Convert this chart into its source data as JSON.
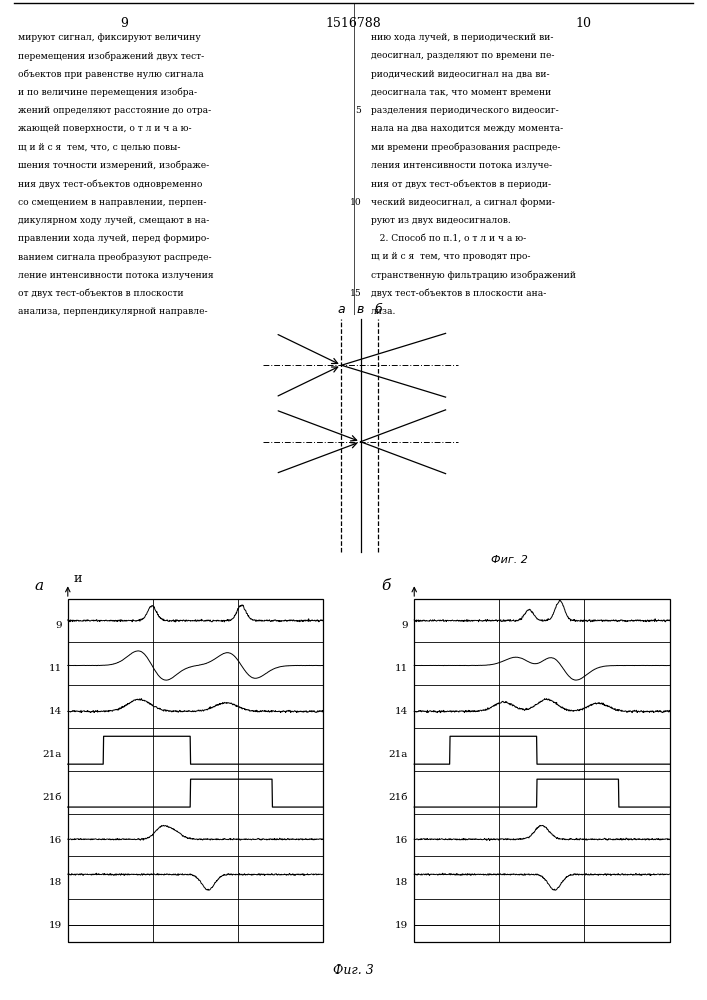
{
  "page_num_left": "9",
  "page_num_center": "1516788",
  "page_num_right": "10",
  "text_left": [
    "мируют сигнал, фиксируют величину",
    "перемещения изображений двух тест-",
    "объектов при равенстве нулю сигнала",
    "и по величине перемещения изобра-",
    "жений определяют расстояние до отра-",
    "жающей поверхности, о т л и ч а ю-",
    "щ и й с я  тем, что, с целью повы-",
    "шения точности измерений, изображе-",
    "ния двух тест-объектов одновременно",
    "со смещением в направлении, перпен-",
    "дикулярном ходу лучей, смещают в на-",
    "правлении хода лучей, перед формиро-",
    "ванием сигнала преобразуют распреде-",
    "ление интенсивности потока излучения",
    "от двух тест-объектов в плоскости",
    "анализа, перпендикулярной направле-"
  ],
  "text_right": [
    "нию хода лучей, в периодический ви-",
    "деосигнал, разделяют по времени пе-",
    "риодический видеосигнал на два ви-",
    "деосигнала так, что момент времени",
    "разделения периодического видеосиг-",
    "нала на два находится между момента-",
    "ми времени преобразования распреде-",
    "ления интенсивности потока излуче-",
    "ния от двух тест-объектов в периоди-",
    "ческий видеосигнал, а сигнал форми-",
    "руют из двух видеосигналов.",
    "   2. Способ по п.1, о т л и ч а ю-",
    "щ и й с я  тем, что проводят про-",
    "странственную фильтрацию изображений",
    "двух тест-объектов в плоскости ана-",
    "лиза."
  ],
  "line_numbers": {
    "4": "5",
    "9": "10",
    "14": "15"
  },
  "fig2_label": "Фиг. 2",
  "fig3_label": "Фиг. 3",
  "fig2_labels_abc": [
    "а",
    "в",
    "б"
  ],
  "panel_a_label": "а",
  "panel_b_label": "б",
  "u_label": "и",
  "row_labels": [
    "9",
    "11",
    "14",
    "21а",
    "21б",
    "16",
    "18",
    "19"
  ]
}
